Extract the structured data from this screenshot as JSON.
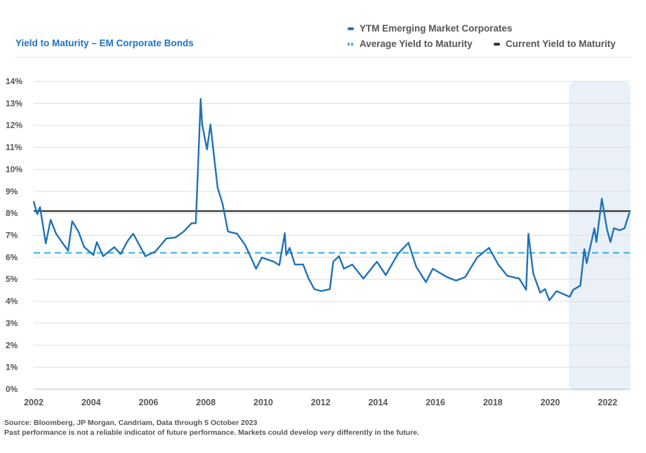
{
  "chart_data": {
    "type": "line",
    "title": "Yield to Maturity – EM Corporate Bonds",
    "xlabel": "",
    "ylabel": "",
    "xlim": [
      2002,
      2022.8
    ],
    "ylim": [
      0,
      14
    ],
    "grid": true,
    "legend_placement": "top-right",
    "x_ticks": [
      "2002",
      "2004",
      "2006",
      "2008",
      "2010",
      "2012",
      "2014",
      "2016",
      "2018",
      "2020",
      "2022"
    ],
    "y_ticks": [
      "0%",
      "1%",
      "2%",
      "3%",
      "4%",
      "5%",
      "6%",
      "7%",
      "8%",
      "9%",
      "10%",
      "11%",
      "12%",
      "13%",
      "14%"
    ],
    "legend": [
      "YTM Emerging Market Corporates",
      "Average Yield to Maturity",
      "Current Yield to Maturity"
    ],
    "shaded_region": [
      2020.65,
      2022.8
    ],
    "series": [
      {
        "name": "YTM Emerging Market Corporates",
        "color": "#1f72b8",
        "x": [
          2002.0,
          2002.12,
          2002.22,
          2002.42,
          2002.59,
          2002.78,
          2003.03,
          2003.2,
          2003.34,
          2003.56,
          2003.76,
          2004.08,
          2004.2,
          2004.42,
          2004.81,
          2005.03,
          2005.28,
          2005.47,
          2005.89,
          2006.25,
          2006.62,
          2006.94,
          2007.23,
          2007.5,
          2007.65,
          2007.82,
          2007.87,
          2008.04,
          2008.16,
          2008.41,
          2008.58,
          2008.77,
          2009.09,
          2009.38,
          2009.75,
          2009.95,
          2010.36,
          2010.56,
          2010.75,
          2010.8,
          2010.92,
          2011.1,
          2011.39,
          2011.58,
          2011.78,
          2012.02,
          2012.32,
          2012.44,
          2012.64,
          2012.81,
          2013.1,
          2013.49,
          2013.96,
          2014.27,
          2014.69,
          2015.06,
          2015.33,
          2015.67,
          2015.91,
          2016.4,
          2016.72,
          2017.04,
          2017.45,
          2017.87,
          2018.19,
          2018.5,
          2018.92,
          2019.16,
          2019.24,
          2019.41,
          2019.65,
          2019.82,
          2019.97,
          2020.22,
          2020.68,
          2020.8,
          2021.05,
          2021.19,
          2021.27,
          2021.54,
          2021.61,
          2021.8,
          2021.98,
          2022.1,
          2022.22,
          2022.42,
          2022.59,
          2022.76
        ],
        "y": [
          8.54,
          7.96,
          8.28,
          6.63,
          7.7,
          7.07,
          6.6,
          6.3,
          7.64,
          7.17,
          6.46,
          6.1,
          6.69,
          6.05,
          6.46,
          6.15,
          6.75,
          7.07,
          6.05,
          6.27,
          6.85,
          6.9,
          7.17,
          7.55,
          7.55,
          13.2,
          12.04,
          10.9,
          12.04,
          9.17,
          8.44,
          7.17,
          7.07,
          6.53,
          5.48,
          5.99,
          5.8,
          5.64,
          7.1,
          6.1,
          6.43,
          5.67,
          5.67,
          5.03,
          4.55,
          4.46,
          4.55,
          5.8,
          6.05,
          5.48,
          5.67,
          5.03,
          5.8,
          5.19,
          6.15,
          6.66,
          5.57,
          4.87,
          5.48,
          5.1,
          4.94,
          5.1,
          5.99,
          6.43,
          5.67,
          5.16,
          5.03,
          4.52,
          7.07,
          5.25,
          4.39,
          4.55,
          4.04,
          4.46,
          4.2,
          4.52,
          4.71,
          6.37,
          5.73,
          7.32,
          6.69,
          8.66,
          7.26,
          6.69,
          7.32,
          7.23,
          7.32,
          8.03
        ]
      },
      {
        "name": "Average Yield to Maturity",
        "color": "#3bb0e0",
        "style": "dashed",
        "value": 6.2
      },
      {
        "name": "Current Yield to Maturity",
        "color": "#333333",
        "value": 8.1
      }
    ]
  },
  "notes": {
    "source": "Source: Bloomberg, JP Morgan, Candriam, Data through 5 October 2023",
    "disclaimer": "Past performance is not a reliable indicator of future performance. Markets could develop very differently in the future."
  }
}
